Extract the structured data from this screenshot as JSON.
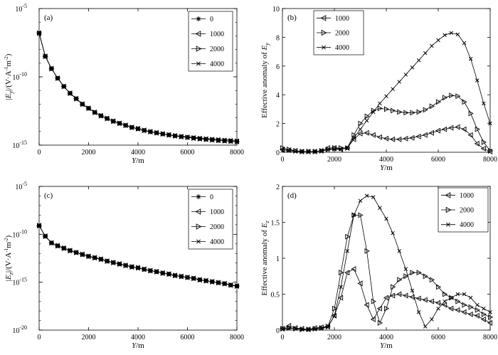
{
  "chart_data": [
    {
      "id": "a",
      "type": "line",
      "panel_label": "(a)",
      "yscale": "log",
      "ylabel_html": "|E<sub>y</sub>|/(V·A<sup>-1</sup>m<sup>-2</sup>)",
      "ylabel": "|Ey|/(V·A-1m-2)",
      "xlabel": "Y/m",
      "xlim": [
        0,
        8000
      ],
      "ylim_exp": [
        -15,
        -5
      ],
      "xticks": [
        "0",
        "2000",
        "4000",
        "6000",
        "8000"
      ],
      "yticks": [
        {
          "exp": -15,
          "label": "10",
          "sup": "-15"
        },
        {
          "exp": -10,
          "label": "10",
          "sup": "-10"
        },
        {
          "exp": -5,
          "label": "10",
          "sup": "-5"
        }
      ],
      "legend_position": "top-right",
      "series": [
        {
          "name": "0",
          "marker": "star",
          "exp_values": [
            -6.8,
            -8.5,
            -9.4,
            -10.1,
            -10.7,
            -11.2,
            -11.6,
            -12.0,
            -12.3,
            -12.6,
            -12.85,
            -13.05,
            -13.25,
            -13.4,
            -13.55,
            -13.7,
            -13.8,
            -13.92,
            -14.02,
            -14.1,
            -14.18,
            -14.25,
            -14.32,
            -14.38,
            -14.43,
            -14.48,
            -14.53,
            -14.57,
            -14.61,
            -14.65,
            -14.68,
            -14.71,
            -14.74
          ]
        },
        {
          "name": "1000",
          "marker": "tri-left",
          "exp_values": [
            -6.8,
            -8.5,
            -9.4,
            -10.1,
            -10.7,
            -11.2,
            -11.6,
            -12.0,
            -12.3,
            -12.6,
            -12.85,
            -13.05,
            -13.25,
            -13.4,
            -13.55,
            -13.7,
            -13.8,
            -13.92,
            -14.02,
            -14.1,
            -14.18,
            -14.25,
            -14.32,
            -14.38,
            -14.43,
            -14.48,
            -14.53,
            -14.57,
            -14.61,
            -14.65,
            -14.68,
            -14.71,
            -14.74
          ]
        },
        {
          "name": "2000",
          "marker": "tri-right",
          "exp_values": [
            -6.8,
            -8.5,
            -9.4,
            -10.1,
            -10.7,
            -11.2,
            -11.6,
            -12.0,
            -12.3,
            -12.6,
            -12.85,
            -13.05,
            -13.25,
            -13.4,
            -13.55,
            -13.7,
            -13.8,
            -13.92,
            -14.02,
            -14.1,
            -14.18,
            -14.25,
            -14.32,
            -14.38,
            -14.43,
            -14.48,
            -14.53,
            -14.57,
            -14.61,
            -14.65,
            -14.68,
            -14.71,
            -14.74
          ]
        },
        {
          "name": "4000",
          "marker": "x",
          "exp_values": [
            -6.8,
            -8.5,
            -9.4,
            -10.1,
            -10.7,
            -11.2,
            -11.6,
            -12.0,
            -12.3,
            -12.6,
            -12.85,
            -13.05,
            -13.25,
            -13.4,
            -13.55,
            -13.7,
            -13.8,
            -13.92,
            -14.02,
            -14.1,
            -14.18,
            -14.25,
            -14.3,
            -14.35,
            -14.39,
            -14.43,
            -14.47,
            -14.51,
            -14.54,
            -14.57,
            -14.6,
            -14.63,
            -14.66
          ]
        }
      ]
    },
    {
      "id": "b",
      "type": "line",
      "panel_label": "(b)",
      "yscale": "linear",
      "ylabel_html": "Effective anomaly of E<tspan font-style='italic' baseline-shift='sub' font-size='8'>y</tspan>",
      "ylabel": "Effective anomaly of Ey",
      "xlabel": "Y/m",
      "xlim": [
        0,
        8000
      ],
      "ylim": [
        0,
        10
      ],
      "xticks": [
        "0",
        "2000",
        "4000",
        "6000",
        "8000"
      ],
      "yticks": [
        "0",
        "2",
        "4",
        "6",
        "8",
        "10"
      ],
      "legend_position": "top-left",
      "series": [
        {
          "name": "1000",
          "marker": "tri-left",
          "values": [
            0.2,
            0.15,
            0.1,
            0.05,
            0.05,
            0.05,
            0.1,
            0.3,
            0.3,
            0.2,
            0.3,
            0.9,
            1.3,
            1.35,
            1.2,
            1.05,
            0.95,
            0.9,
            0.9,
            0.95,
            1.0,
            1.1,
            1.2,
            1.35,
            1.5,
            1.6,
            1.7,
            1.75,
            1.6,
            1.2,
            0.6,
            0.25,
            0.05
          ]
        },
        {
          "name": "2000",
          "marker": "tri-right",
          "values": [
            0.3,
            0.2,
            0.1,
            0.05,
            0.05,
            0.05,
            0.1,
            0.2,
            0.3,
            0.3,
            0.3,
            1.2,
            2.0,
            2.5,
            2.9,
            3.05,
            3.0,
            2.9,
            2.8,
            2.75,
            2.75,
            2.8,
            2.95,
            3.2,
            3.5,
            3.8,
            3.95,
            3.9,
            3.5,
            2.7,
            1.6,
            0.7,
            0.1
          ]
        },
        {
          "name": "4000",
          "marker": "x",
          "values": [
            0.1,
            0.1,
            0.05,
            0.05,
            0.05,
            0.05,
            0.1,
            0.15,
            0.2,
            0.2,
            0.3,
            1.0,
            1.6,
            2.2,
            2.8,
            3.4,
            3.9,
            4.4,
            4.9,
            5.4,
            5.9,
            6.4,
            6.9,
            7.4,
            7.8,
            8.15,
            8.3,
            8.2,
            7.6,
            6.5,
            5.0,
            3.4,
            2.0
          ]
        }
      ]
    },
    {
      "id": "c",
      "type": "line",
      "panel_label": "(c)",
      "yscale": "log",
      "ylabel_html": "|E<sub>z</sub>|/(V·A<sup>-1</sup>m<sup>-2</sup>)",
      "ylabel": "|Ez|/(V·A-1m-2)",
      "xlabel": "Y/m",
      "xlim": [
        0,
        8000
      ],
      "ylim_exp": [
        -20,
        -5
      ],
      "xticks": [
        "0",
        "2000",
        "4000",
        "6000",
        "8000"
      ],
      "yticks": [
        {
          "exp": -20,
          "label": "10",
          "sup": "-20"
        },
        {
          "exp": -15,
          "label": "10",
          "sup": "-15"
        },
        {
          "exp": -10,
          "label": "10",
          "sup": "-10"
        },
        {
          "exp": -5,
          "label": "10",
          "sup": "-5"
        }
      ],
      "legend_position": "top-right",
      "series": [
        {
          "name": "0",
          "marker": "star",
          "exp_values": [
            -9.1,
            -10.2,
            -10.9,
            -11.2,
            -11.45,
            -11.7,
            -11.9,
            -12.1,
            -12.3,
            -12.45,
            -12.6,
            -12.8,
            -12.95,
            -13.1,
            -13.25,
            -13.4,
            -13.5,
            -13.65,
            -13.8,
            -13.9,
            -14.05,
            -14.15,
            -14.3,
            -14.4,
            -14.5,
            -14.6,
            -14.75,
            -14.85,
            -14.95,
            -15.05,
            -15.15,
            -15.3,
            -15.4
          ]
        },
        {
          "name": "1000",
          "marker": "tri-left",
          "exp_values": [
            -9.1,
            -10.2,
            -10.9,
            -11.2,
            -11.45,
            -11.7,
            -11.9,
            -12.1,
            -12.3,
            -12.45,
            -12.6,
            -12.8,
            -12.95,
            -13.1,
            -13.25,
            -13.4,
            -13.5,
            -13.65,
            -13.8,
            -13.9,
            -14.05,
            -14.15,
            -14.3,
            -14.4,
            -14.5,
            -14.6,
            -14.75,
            -14.85,
            -14.95,
            -15.05,
            -15.15,
            -15.3,
            -15.4
          ]
        },
        {
          "name": "2000",
          "marker": "tri-right",
          "exp_values": [
            -9.1,
            -10.2,
            -10.9,
            -11.2,
            -11.45,
            -11.7,
            -11.9,
            -12.1,
            -12.3,
            -12.45,
            -12.6,
            -12.8,
            -12.95,
            -13.1,
            -13.25,
            -13.4,
            -13.5,
            -13.65,
            -13.8,
            -13.9,
            -14.05,
            -14.15,
            -14.3,
            -14.4,
            -14.5,
            -14.6,
            -14.75,
            -14.85,
            -14.95,
            -15.05,
            -15.15,
            -15.3,
            -15.4
          ]
        },
        {
          "name": "4000",
          "marker": "x",
          "exp_values": [
            -9.1,
            -10.2,
            -10.9,
            -11.2,
            -11.45,
            -11.7,
            -11.9,
            -12.1,
            -12.3,
            -12.45,
            -12.6,
            -12.8,
            -12.95,
            -13.1,
            -13.25,
            -13.4,
            -13.5,
            -13.65,
            -13.8,
            -13.9,
            -14.05,
            -14.15,
            -14.3,
            -14.4,
            -14.5,
            -14.6,
            -14.75,
            -14.85,
            -14.95,
            -15.05,
            -15.15,
            -15.3,
            -15.4
          ]
        }
      ]
    },
    {
      "id": "d",
      "type": "line",
      "panel_label": "(d)",
      "yscale": "linear",
      "ylabel_html": "Effective anomaly of E<tspan font-style='italic' baseline-shift='sub' font-size='8'>z</tspan>",
      "ylabel": "Effective anomaly of Ez",
      "xlabel": "Y/m",
      "xlim": [
        0,
        8000
      ],
      "ylim": [
        0,
        2
      ],
      "xticks": [
        "0",
        "2000",
        "4000",
        "6000",
        "8000"
      ],
      "yticks": [
        "0",
        "0.5",
        "1",
        "1.5",
        "2"
      ],
      "legend_position": "top-right",
      "series": [
        {
          "name": "1000",
          "marker": "tri-left",
          "values": [
            0.02,
            0.06,
            0.03,
            0.02,
            0.01,
            0.03,
            0.04,
            0.05,
            0.2,
            0.45,
            0.8,
            0.85,
            0.65,
            0.35,
            0.15,
            0.3,
            0.45,
            0.48,
            0.5,
            0.48,
            0.46,
            0.44,
            0.42,
            0.4,
            0.38,
            0.35,
            0.3,
            0.28,
            0.25,
            0.22,
            0.2,
            0.15,
            0.1
          ]
        },
        {
          "name": "2000",
          "marker": "tri-right",
          "values": [
            0.02,
            0.03,
            0.02,
            0.01,
            0.01,
            0.02,
            0.03,
            0.05,
            0.3,
            0.8,
            1.3,
            1.6,
            1.6,
            1.1,
            0.4,
            0.1,
            0.3,
            0.6,
            0.7,
            0.75,
            0.8,
            0.8,
            0.75,
            0.7,
            0.6,
            0.5,
            0.45,
            0.4,
            0.35,
            0.32,
            0.28,
            0.22,
            0.18
          ]
        },
        {
          "name": "4000",
          "marker": "x",
          "values": [
            0.01,
            0.02,
            0.02,
            0.01,
            0.01,
            0.01,
            0.02,
            0.04,
            0.2,
            0.6,
            1.1,
            1.6,
            1.8,
            1.87,
            1.85,
            1.7,
            1.55,
            1.35,
            1.1,
            0.85,
            0.55,
            0.25,
            0.05,
            0.15,
            0.3,
            0.4,
            0.45,
            0.5,
            0.5,
            0.45,
            0.35,
            0.3,
            0.25
          ]
        }
      ]
    }
  ]
}
